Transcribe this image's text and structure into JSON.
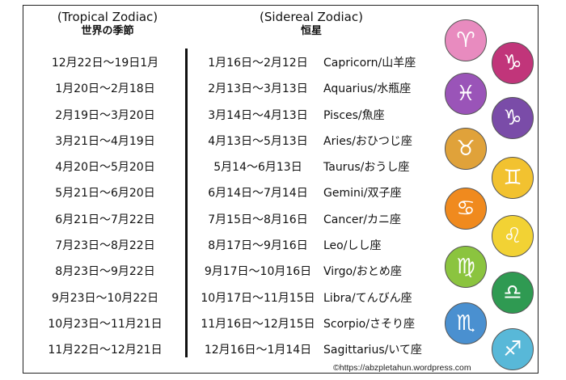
{
  "headers": {
    "tropical_title": "(Tropical Zodiac)",
    "tropical_sub": "世界の季節",
    "sidereal_title": "(Sidereal Zodiac)",
    "sidereal_sub": "恒星"
  },
  "tropical_dates": [
    "12月22日～19日1月",
    "1月20日～2月18日",
    "2月19日～3月20日",
    "3月21日～4月19日",
    "4月20日～5月20日",
    "5月21日～6月20日",
    "6月21日～7月22日",
    "7月23日～8月22日",
    "8月23日～9月22日",
    "9月23日～10月22日",
    "10月23日～11月21日",
    "11月22日～12月21日"
  ],
  "sidereal": [
    {
      "dates": "1月16日～2月12日",
      "sign": "Capricorn/山羊座"
    },
    {
      "dates": "2月13日～3月13日",
      "sign": "Aquarius/水瓶座"
    },
    {
      "dates": "3月14日～4月13日",
      "sign": "Pisces/魚座"
    },
    {
      "dates": "4月13日～5月13日",
      "sign": "Aries/おひつじ座"
    },
    {
      "dates": "5月14～6月13日",
      "sign": "Taurus/おうし座"
    },
    {
      "dates": "6月14日～7月14日",
      "sign": "Gemini/双子座"
    },
    {
      "dates": "7月15日～8月16日",
      "sign": "Cancer/カニ座"
    },
    {
      "dates": "8月17日～9月16日",
      "sign": "Leo/しし座"
    },
    {
      "dates": "9月17日～10月16日",
      "sign": "Virgo/おとめ座"
    },
    {
      "dates": "10月17日～11月15日",
      "sign": "Libra/てんびん座"
    },
    {
      "dates": "11月16日～12月15日",
      "sign": "Scorpio/さそり座"
    },
    {
      "dates": "12月16日～1月14日",
      "sign": "Sagittarius/いて座"
    }
  ],
  "badges": [
    {
      "icon": "sheep-icon",
      "glyph": "♈",
      "color": "#e88bbf"
    },
    {
      "icon": "lizard-icon",
      "glyph": "♑",
      "color": "#c1357a"
    },
    {
      "icon": "fish-icon",
      "glyph": "♓",
      "color": "#9a54b8"
    },
    {
      "icon": "goat-icon",
      "glyph": "♑",
      "color": "#7a4ca8"
    },
    {
      "icon": "bull-icon",
      "glyph": "♉",
      "color": "#e0a23a"
    },
    {
      "icon": "twins-icon",
      "glyph": "♊",
      "color": "#f2c230"
    },
    {
      "icon": "crab-icon",
      "glyph": "♋",
      "color": "#f08a1e"
    },
    {
      "icon": "lion-icon",
      "glyph": "♌",
      "color": "#f2d234"
    },
    {
      "icon": "maiden-icon",
      "glyph": "♍",
      "color": "#8bc43f"
    },
    {
      "icon": "scales-icon",
      "glyph": "♎",
      "color": "#2f9a52"
    },
    {
      "icon": "scorpion-icon",
      "glyph": "♏",
      "color": "#4a90d0"
    },
    {
      "icon": "archer-icon",
      "glyph": "♐",
      "color": "#58b8d8"
    }
  ],
  "copyright": "©https://abzpletahun.wordpress.com"
}
